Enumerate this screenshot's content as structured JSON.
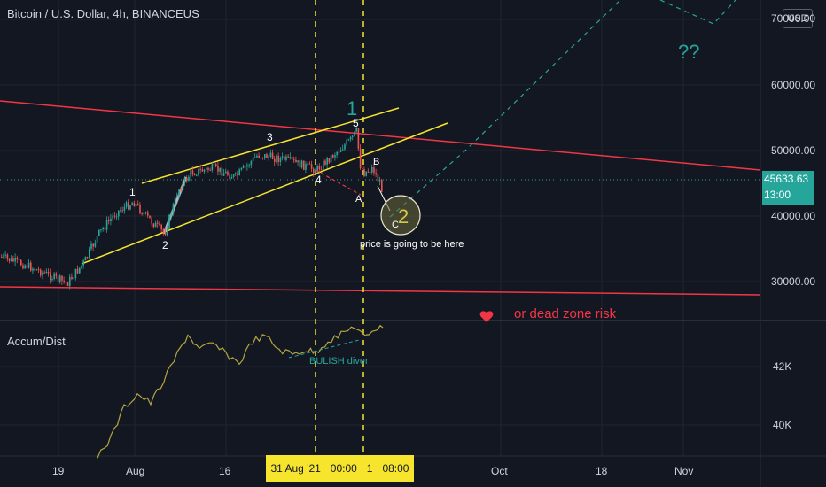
{
  "header": {
    "title": "Bitcoin / U.S. Dollar, 4h, BINANCEUS",
    "currency_button": "USD"
  },
  "price_axis": {
    "labels": [
      "70000.00",
      "60000.00",
      "50000.00",
      "40000.00",
      "30000.00"
    ],
    "current_price": "45633.63",
    "countdown": "13:00"
  },
  "indicator": {
    "name": "Accum/Dist",
    "axis_labels": [
      "42K",
      "40K"
    ]
  },
  "time_axis": {
    "labels": [
      "19",
      "Aug",
      "16",
      "Oct",
      "18",
      "Nov"
    ],
    "highlight": [
      "31 Aug '21",
      "00:00",
      "1",
      "08:00"
    ]
  },
  "annotations": {
    "waves": [
      "1",
      "2",
      "3",
      "4",
      "5",
      "A",
      "B",
      "C"
    ],
    "big_1": "1",
    "big_2": "2",
    "question": "??",
    "price_note": "price is going to be here",
    "dead_zone": "or dead zone risk",
    "bullish": "BULISH diver"
  },
  "colors": {
    "background": "#131722",
    "candle_up": "#26a69a",
    "candle_down": "#ef5350",
    "channel": "#f6e42d",
    "trendline": "#f23645",
    "projection": "#26a69a",
    "indicator_line": "#b5a640"
  }
}
